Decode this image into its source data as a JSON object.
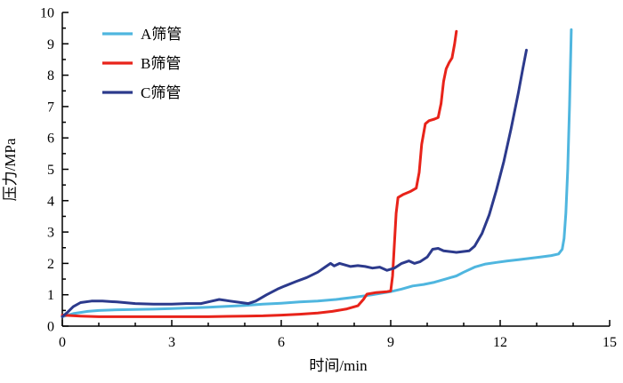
{
  "chart_data": {
    "type": "line",
    "title": "",
    "xlabel": "时间/min",
    "ylabel": "压力/MPa",
    "xlim": [
      0,
      15
    ],
    "ylim": [
      0,
      10
    ],
    "xticks": [
      0,
      3,
      6,
      9,
      12,
      15
    ],
    "yticks": [
      0,
      1,
      2,
      3,
      4,
      5,
      6,
      7,
      8,
      9,
      10
    ],
    "grid": false,
    "legend_position": "upper-left",
    "series": [
      {
        "name": "A筛管",
        "color": "#4FB6DF",
        "points": [
          [
            0,
            0.3
          ],
          [
            0.3,
            0.4
          ],
          [
            0.7,
            0.47
          ],
          [
            1,
            0.5
          ],
          [
            1.5,
            0.52
          ],
          [
            2,
            0.53
          ],
          [
            2.5,
            0.54
          ],
          [
            3,
            0.56
          ],
          [
            3.5,
            0.58
          ],
          [
            4,
            0.6
          ],
          [
            4.5,
            0.63
          ],
          [
            5,
            0.66
          ],
          [
            5.5,
            0.7
          ],
          [
            6,
            0.73
          ],
          [
            6.5,
            0.77
          ],
          [
            7,
            0.8
          ],
          [
            7.5,
            0.85
          ],
          [
            8,
            0.92
          ],
          [
            8.5,
            1.0
          ],
          [
            9,
            1.1
          ],
          [
            9.3,
            1.18
          ],
          [
            9.6,
            1.28
          ],
          [
            9.9,
            1.33
          ],
          [
            10.2,
            1.4
          ],
          [
            10.5,
            1.5
          ],
          [
            10.8,
            1.6
          ],
          [
            11,
            1.72
          ],
          [
            11.3,
            1.88
          ],
          [
            11.6,
            1.98
          ],
          [
            11.9,
            2.03
          ],
          [
            12.2,
            2.08
          ],
          [
            12.5,
            2.12
          ],
          [
            12.8,
            2.16
          ],
          [
            13.1,
            2.2
          ],
          [
            13.4,
            2.25
          ],
          [
            13.6,
            2.3
          ],
          [
            13.7,
            2.45
          ],
          [
            13.75,
            2.8
          ],
          [
            13.8,
            3.6
          ],
          [
            13.85,
            5.0
          ],
          [
            13.9,
            7.0
          ],
          [
            13.95,
            9.45
          ]
        ]
      },
      {
        "name": "B筛管",
        "color": "#E8231A",
        "points": [
          [
            0,
            0.35
          ],
          [
            0.5,
            0.32
          ],
          [
            1,
            0.3
          ],
          [
            2,
            0.3
          ],
          [
            3,
            0.3
          ],
          [
            4,
            0.3
          ],
          [
            5,
            0.32
          ],
          [
            5.5,
            0.33
          ],
          [
            6,
            0.35
          ],
          [
            6.5,
            0.38
          ],
          [
            7,
            0.42
          ],
          [
            7.4,
            0.47
          ],
          [
            7.8,
            0.55
          ],
          [
            8.1,
            0.65
          ],
          [
            8.25,
            0.85
          ],
          [
            8.35,
            1.02
          ],
          [
            8.6,
            1.07
          ],
          [
            8.9,
            1.1
          ],
          [
            9.0,
            1.12
          ],
          [
            9.05,
            1.6
          ],
          [
            9.1,
            2.6
          ],
          [
            9.15,
            3.6
          ],
          [
            9.2,
            4.1
          ],
          [
            9.35,
            4.2
          ],
          [
            9.55,
            4.3
          ],
          [
            9.7,
            4.4
          ],
          [
            9.78,
            4.9
          ],
          [
            9.85,
            5.8
          ],
          [
            9.95,
            6.45
          ],
          [
            10.05,
            6.55
          ],
          [
            10.2,
            6.6
          ],
          [
            10.3,
            6.65
          ],
          [
            10.38,
            7.1
          ],
          [
            10.45,
            7.8
          ],
          [
            10.52,
            8.2
          ],
          [
            10.6,
            8.4
          ],
          [
            10.68,
            8.55
          ],
          [
            10.75,
            9.0
          ],
          [
            10.8,
            9.4
          ]
        ]
      },
      {
        "name": "C筛管",
        "color": "#2C3A8C",
        "points": [
          [
            0,
            0.3
          ],
          [
            0.15,
            0.45
          ],
          [
            0.3,
            0.62
          ],
          [
            0.5,
            0.75
          ],
          [
            0.8,
            0.8
          ],
          [
            1.1,
            0.8
          ],
          [
            1.5,
            0.77
          ],
          [
            2,
            0.72
          ],
          [
            2.5,
            0.7
          ],
          [
            3,
            0.7
          ],
          [
            3.4,
            0.72
          ],
          [
            3.8,
            0.72
          ],
          [
            4.1,
            0.8
          ],
          [
            4.3,
            0.85
          ],
          [
            4.6,
            0.8
          ],
          [
            4.9,
            0.75
          ],
          [
            5.1,
            0.72
          ],
          [
            5.3,
            0.8
          ],
          [
            5.6,
            1.0
          ],
          [
            5.9,
            1.18
          ],
          [
            6.1,
            1.28
          ],
          [
            6.4,
            1.42
          ],
          [
            6.7,
            1.55
          ],
          [
            7.0,
            1.72
          ],
          [
            7.2,
            1.88
          ],
          [
            7.35,
            2.0
          ],
          [
            7.45,
            1.92
          ],
          [
            7.6,
            2.0
          ],
          [
            7.75,
            1.95
          ],
          [
            7.9,
            1.9
          ],
          [
            8.1,
            1.93
          ],
          [
            8.3,
            1.9
          ],
          [
            8.5,
            1.85
          ],
          [
            8.7,
            1.88
          ],
          [
            8.9,
            1.78
          ],
          [
            9.1,
            1.85
          ],
          [
            9.3,
            2.0
          ],
          [
            9.5,
            2.08
          ],
          [
            9.65,
            2.0
          ],
          [
            9.8,
            2.05
          ],
          [
            10.0,
            2.2
          ],
          [
            10.15,
            2.45
          ],
          [
            10.3,
            2.48
          ],
          [
            10.45,
            2.4
          ],
          [
            10.6,
            2.38
          ],
          [
            10.8,
            2.35
          ],
          [
            11.0,
            2.38
          ],
          [
            11.15,
            2.4
          ],
          [
            11.3,
            2.55
          ],
          [
            11.5,
            2.95
          ],
          [
            11.7,
            3.55
          ],
          [
            11.9,
            4.35
          ],
          [
            12.1,
            5.25
          ],
          [
            12.3,
            6.3
          ],
          [
            12.5,
            7.45
          ],
          [
            12.62,
            8.2
          ],
          [
            12.72,
            8.8
          ]
        ]
      }
    ]
  }
}
